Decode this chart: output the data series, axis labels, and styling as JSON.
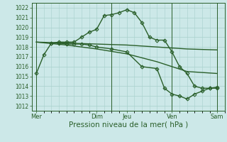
{
  "bg_color": "#cce8e8",
  "grid_color": "#a8d0cc",
  "line_color": "#2a5f2a",
  "marker_color": "#2a5f2a",
  "x_ticks_pos": [
    0,
    4,
    6,
    9,
    12
  ],
  "x_tick_labels": [
    "Mer",
    "Dim",
    "Jeu",
    "Ven",
    "Sam"
  ],
  "ylim": [
    1011.5,
    1022.5
  ],
  "yticks": [
    1012,
    1013,
    1014,
    1015,
    1016,
    1017,
    1018,
    1019,
    1020,
    1021,
    1022
  ],
  "xlabel": "Pression niveau de la mer( hPa )",
  "xlabel_fontsize": 7.5,
  "series": [
    {
      "x": [
        0,
        0.5,
        1.0,
        1.5,
        2.0,
        2.5,
        3.0,
        3.5,
        4.0,
        4.5,
        5.0,
        5.5,
        6.0,
        6.5,
        7.0,
        7.5,
        8.0,
        8.5,
        9.0,
        9.5,
        10.0,
        10.5,
        11.0,
        11.5,
        12.0
      ],
      "y": [
        1015.3,
        1017.2,
        1018.4,
        1018.5,
        1018.5,
        1018.5,
        1019.0,
        1019.5,
        1019.8,
        1021.2,
        1021.3,
        1021.5,
        1021.8,
        1021.5,
        1020.5,
        1019.0,
        1018.7,
        1018.7,
        1017.5,
        1016.0,
        1015.3,
        1014.0,
        1013.8,
        1013.8,
        1013.8
      ],
      "marker": "D",
      "markersize": 2.5,
      "linewidth": 1.0
    },
    {
      "x": [
        0,
        2.0,
        4.0,
        6.0,
        8.0,
        10.0,
        12.0
      ],
      "y": [
        1018.5,
        1018.4,
        1018.3,
        1018.2,
        1018.0,
        1017.8,
        1017.7
      ],
      "marker": null,
      "markersize": 0,
      "linewidth": 1.0
    },
    {
      "x": [
        0,
        2.0,
        4.0,
        6.0,
        8.0,
        10.0,
        12.0
      ],
      "y": [
        1018.5,
        1018.2,
        1017.8,
        1017.3,
        1016.5,
        1015.5,
        1015.3
      ],
      "marker": null,
      "markersize": 0,
      "linewidth": 1.0
    },
    {
      "x": [
        1.0,
        1.5,
        2.0,
        2.5,
        3.0,
        3.5,
        4.0,
        5.0,
        6.0,
        7.0,
        8.0,
        8.5,
        9.0,
        9.5,
        10.0,
        10.5,
        11.0,
        11.5,
        12.0
      ],
      "y": [
        1018.4,
        1018.4,
        1018.3,
        1018.3,
        1018.3,
        1018.2,
        1018.0,
        1017.8,
        1017.5,
        1016.0,
        1015.8,
        1013.8,
        1013.2,
        1013.0,
        1012.7,
        1013.2,
        1013.5,
        1013.8,
        1013.9
      ],
      "marker": "D",
      "markersize": 2.5,
      "linewidth": 1.0
    }
  ],
  "vlines_x": [
    0,
    5.0,
    9.0,
    12.0
  ],
  "vline_color": "#2a5f2a",
  "vline_lw": 0.7
}
